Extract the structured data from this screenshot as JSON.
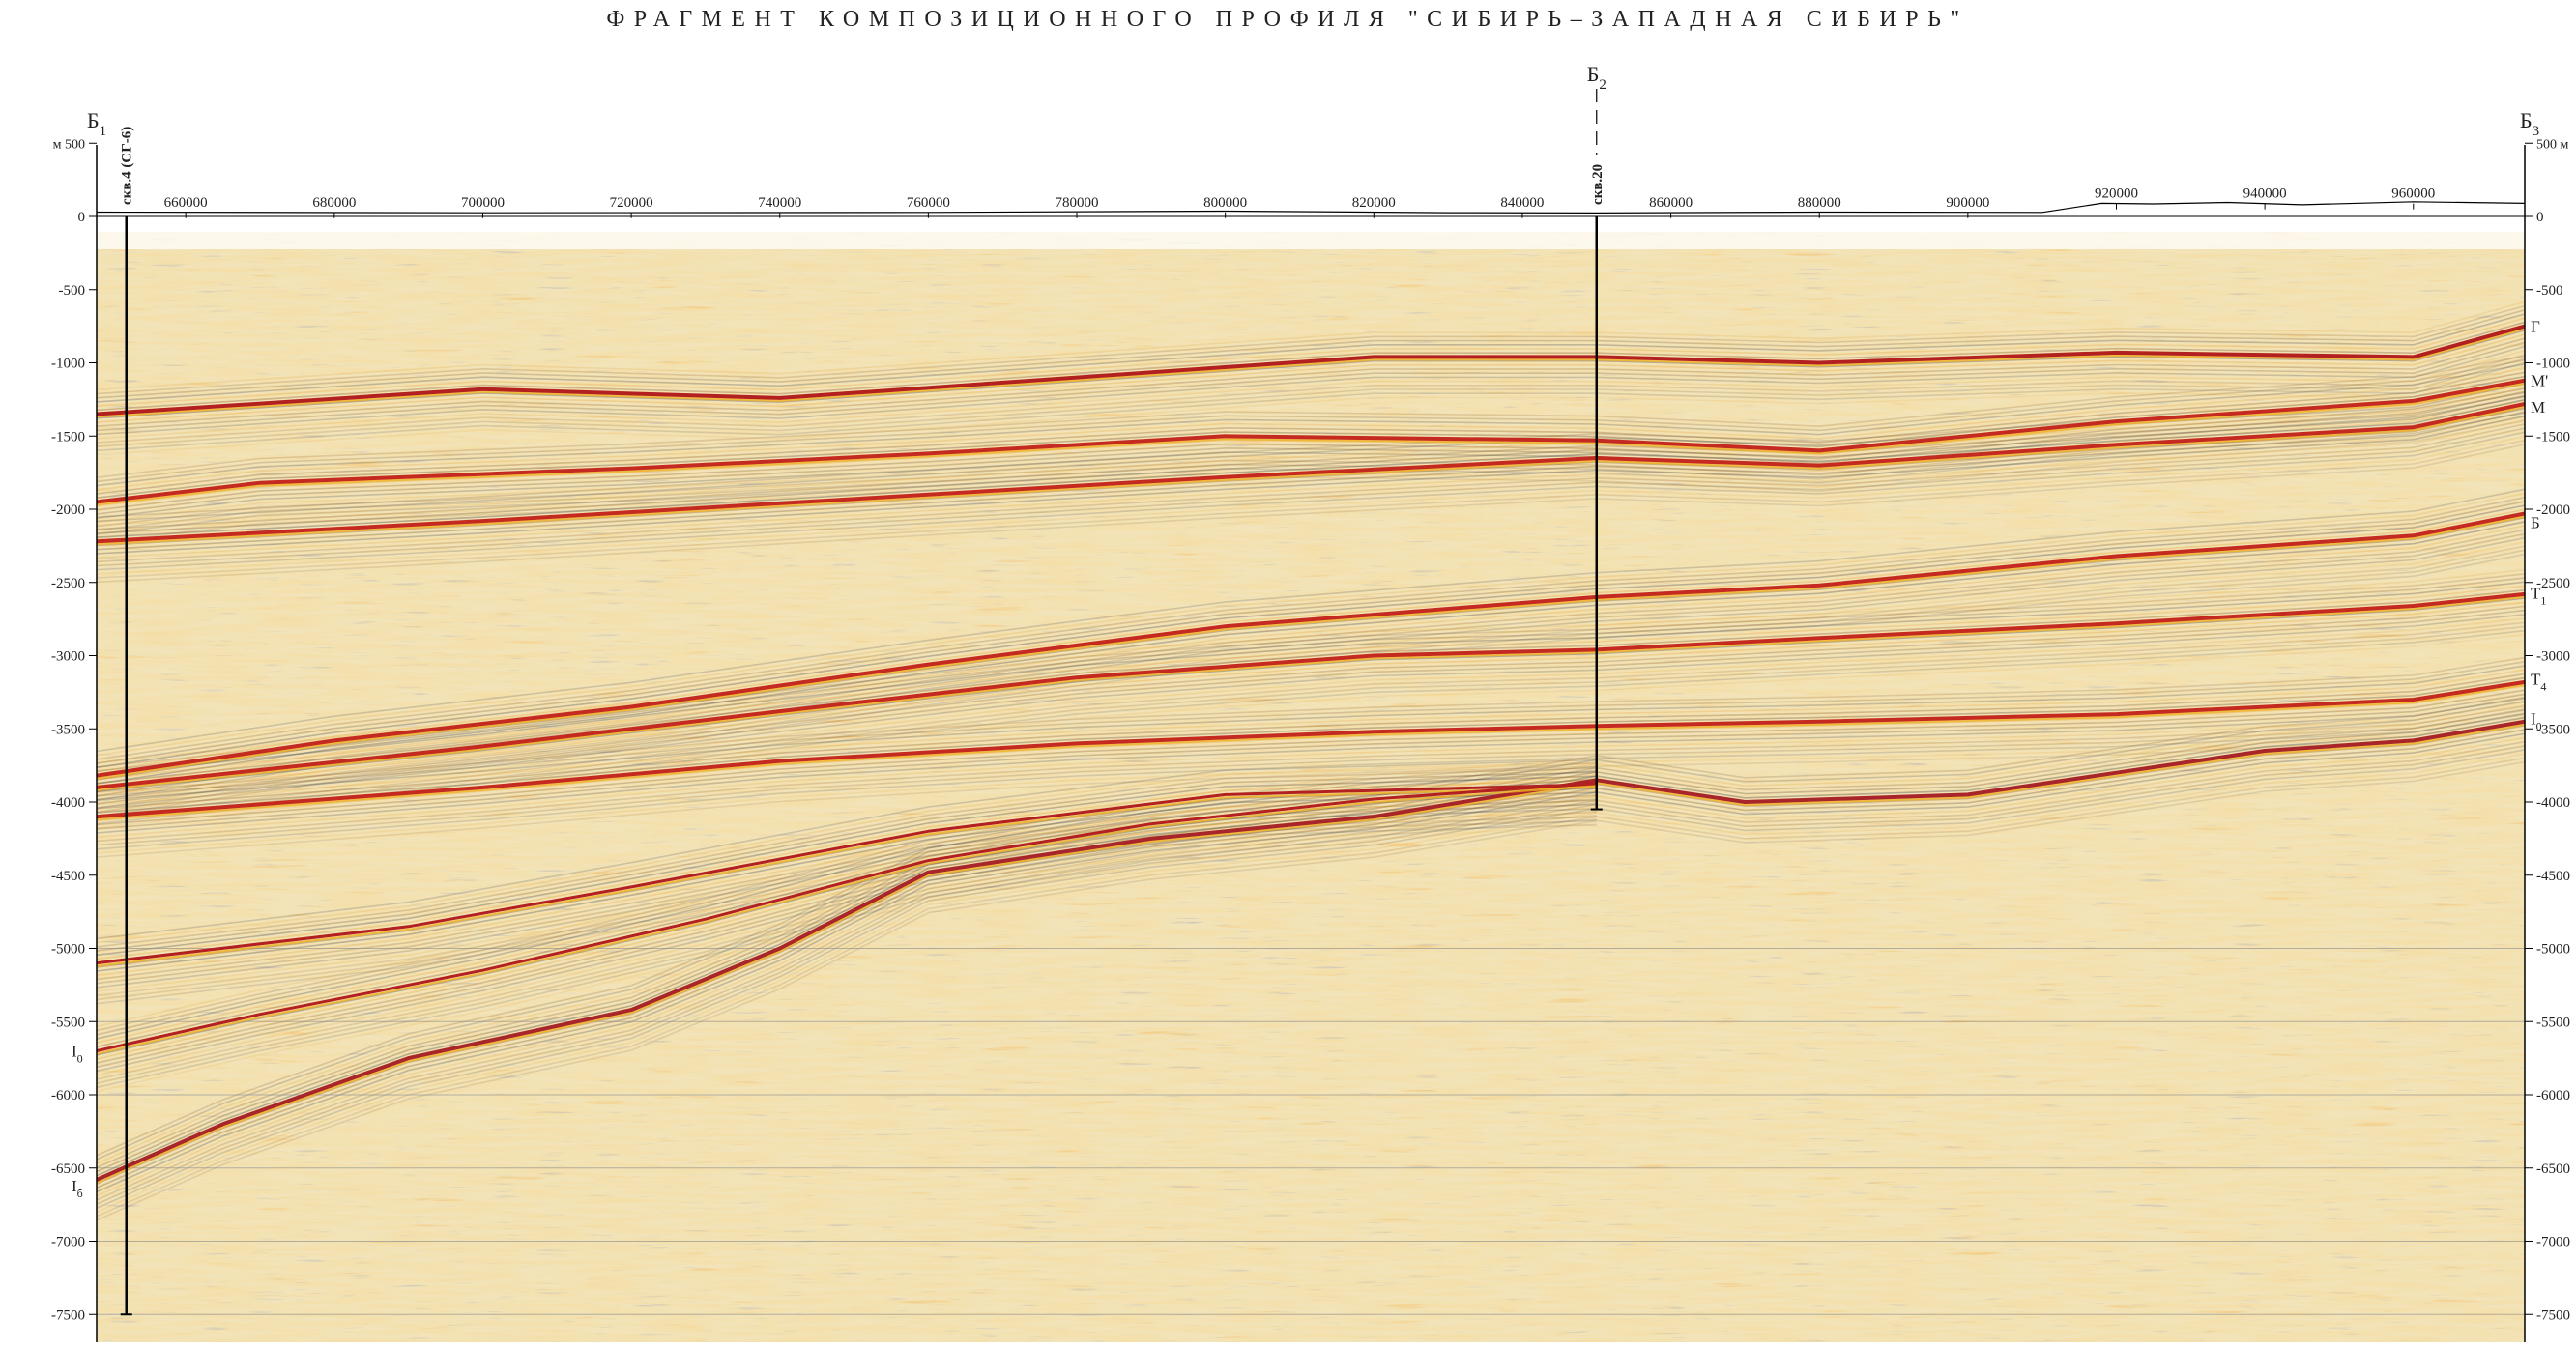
{
  "title": "ФРАГМЕНТ КОМПОЗИЦИОННОГО ПРОФИЛЯ \"СИБИРЬ–ЗАПАДНАЯ СИБИРЬ\"",
  "profile_points": {
    "left": {
      "letter": "Б",
      "index": "1"
    },
    "middle": {
      "letter": "Б",
      "index": "2"
    },
    "right": {
      "letter": "Б",
      "index": "3"
    }
  },
  "wells": [
    {
      "label": "скв.4 (СГ-6)",
      "x": 652000,
      "bottom_depth": -7500
    },
    {
      "label": "скв.20",
      "x": 850000,
      "bottom_depth": -4050
    }
  ],
  "elevation_label_left": "м 500",
  "elevation_label_right": "500 м",
  "zero_label": "0",
  "x_ticks": [
    660000,
    680000,
    700000,
    720000,
    740000,
    760000,
    780000,
    800000,
    820000,
    840000,
    860000,
    880000,
    900000,
    920000,
    940000,
    960000
  ],
  "x_tick_labels": [
    "660000",
    "680000",
    "700000",
    "720000",
    "740000",
    "760000",
    "780000",
    "800000",
    "820000",
    "840000",
    "860000",
    "880000",
    "900000",
    "920000",
    "940000",
    "960000"
  ],
  "depth_ticks": [
    -500,
    -1000,
    -1500,
    -2000,
    -2500,
    -3000,
    -3500,
    -4000,
    -4500,
    -5000,
    -5500,
    -6000,
    -6500,
    -7000,
    -7500
  ],
  "depth_tick_labels": [
    "-500",
    "-1000",
    "-1500",
    "-2000",
    "-2500",
    "-3000",
    "-3500",
    "-4000",
    "-4500",
    "-5000",
    "-5500",
    "-6000",
    "-6500",
    "-7000",
    "-7500"
  ],
  "right_depth_tick_labels": [
    "-500",
    "-1000",
    "-1500",
    "-2000",
    "-2500",
    "-3000",
    "-3500",
    "-4000",
    "-4500",
    "-5000",
    "-5500",
    "-6000",
    "-6500",
    "-7000",
    "-7500"
  ],
  "horizons": [
    {
      "id": "G",
      "label": "Г",
      "sub": "",
      "color": "#b32020",
      "width": 4,
      "points": [
        [
          648000,
          -1350
        ],
        [
          700000,
          -1180
        ],
        [
          740000,
          -1240
        ],
        [
          780000,
          -1100
        ],
        [
          820000,
          -960
        ],
        [
          850000,
          -960
        ],
        [
          880000,
          -1000
        ],
        [
          920000,
          -930
        ],
        [
          960000,
          -960
        ],
        [
          975000,
          -750
        ]
      ]
    },
    {
      "id": "Mp",
      "label": "М'",
      "sub": "",
      "color": "#c42a20",
      "width": 4,
      "points": [
        [
          648000,
          -1950
        ],
        [
          670000,
          -1820
        ],
        [
          720000,
          -1720
        ],
        [
          760000,
          -1620
        ],
        [
          800000,
          -1500
        ],
        [
          850000,
          -1530
        ],
        [
          880000,
          -1600
        ],
        [
          920000,
          -1400
        ],
        [
          960000,
          -1260
        ],
        [
          975000,
          -1120
        ]
      ]
    },
    {
      "id": "M",
      "label": "М",
      "sub": "",
      "color": "#c42a20",
      "width": 4,
      "points": [
        [
          648000,
          -2220
        ],
        [
          700000,
          -2080
        ],
        [
          760000,
          -1900
        ],
        [
          800000,
          -1780
        ],
        [
          850000,
          -1650
        ],
        [
          880000,
          -1700
        ],
        [
          920000,
          -1560
        ],
        [
          960000,
          -1440
        ],
        [
          975000,
          -1280
        ]
      ]
    },
    {
      "id": "B",
      "label": "Б",
      "sub": "",
      "color": "#c42a20",
      "width": 4,
      "points": [
        [
          648000,
          -3820
        ],
        [
          680000,
          -3580
        ],
        [
          720000,
          -3350
        ],
        [
          760000,
          -3060
        ],
        [
          800000,
          -2800
        ],
        [
          850000,
          -2600
        ],
        [
          880000,
          -2520
        ],
        [
          920000,
          -2320
        ],
        [
          960000,
          -2180
        ],
        [
          975000,
          -2030
        ]
      ]
    },
    {
      "id": "T1",
      "label": "T",
      "sub": "1",
      "color": "#c42a20",
      "width": 4,
      "points": [
        [
          648000,
          -3900
        ],
        [
          700000,
          -3620
        ],
        [
          740000,
          -3380
        ],
        [
          780000,
          -3150
        ],
        [
          820000,
          -3000
        ],
        [
          850000,
          -2960
        ],
        [
          880000,
          -2880
        ],
        [
          920000,
          -2780
        ],
        [
          960000,
          -2660
        ],
        [
          975000,
          -2580
        ]
      ]
    },
    {
      "id": "T4",
      "label": "T",
      "sub": "4",
      "color": "#c42a20",
      "width": 4,
      "points": [
        [
          648000,
          -4100
        ],
        [
          700000,
          -3900
        ],
        [
          740000,
          -3720
        ],
        [
          780000,
          -3600
        ],
        [
          820000,
          -3520
        ],
        [
          850000,
          -3480
        ],
        [
          880000,
          -3450
        ],
        [
          920000,
          -3400
        ],
        [
          960000,
          -3300
        ],
        [
          975000,
          -3180
        ]
      ]
    },
    {
      "id": "I0",
      "label": "I",
      "sub": "0",
      "color": "#a8252a",
      "width": 4,
      "points": [
        [
          648000,
          -6580
        ],
        [
          665000,
          -6200
        ],
        [
          690000,
          -5750
        ],
        [
          720000,
          -5420
        ],
        [
          740000,
          -5000
        ],
        [
          760000,
          -4480
        ],
        [
          790000,
          -4250
        ],
        [
          820000,
          -4100
        ],
        [
          850000,
          -3850
        ],
        [
          870000,
          -4000
        ],
        [
          900000,
          -3950
        ],
        [
          920000,
          -3800
        ],
        [
          940000,
          -3650
        ],
        [
          960000,
          -3580
        ],
        [
          975000,
          -3450
        ]
      ]
    },
    {
      "id": "Ib1",
      "label": "",
      "sub": "",
      "color": "#b32020",
      "width": 3,
      "points": [
        [
          648000,
          -5100
        ],
        [
          690000,
          -4850
        ],
        [
          720000,
          -4580
        ],
        [
          760000,
          -4200
        ],
        [
          800000,
          -3950
        ],
        [
          850000,
          -3880
        ]
      ]
    },
    {
      "id": "Ib2",
      "label": "",
      "sub": "",
      "color": "#b32020",
      "width": 3,
      "points": [
        [
          648000,
          -5700
        ],
        [
          670000,
          -5450
        ],
        [
          700000,
          -5150
        ],
        [
          730000,
          -4800
        ],
        [
          760000,
          -4400
        ],
        [
          790000,
          -4150
        ],
        [
          820000,
          -3980
        ],
        [
          850000,
          -3870
        ]
      ]
    }
  ],
  "left_horizon_labels": [
    {
      "label": "I",
      "sub": "0",
      "depth": -5700
    },
    {
      "label": "I",
      "sub": "б",
      "depth": -6620
    }
  ],
  "right_horizon_labels": [
    {
      "label": "Г",
      "sub": "",
      "depth": -750
    },
    {
      "label": "М'",
      "sub": "",
      "depth": -1120
    },
    {
      "label": "М",
      "sub": "",
      "depth": -1300
    },
    {
      "label": "Б",
      "sub": "",
      "depth": -2090
    },
    {
      "label": "T",
      "sub": "1",
      "depth": -2570
    },
    {
      "label": "T",
      "sub": "4",
      "depth": -3160
    },
    {
      "label": "I",
      "sub": "0",
      "depth": -3430
    }
  ],
  "relief": [
    [
      648000,
      30
    ],
    [
      700000,
      25
    ],
    [
      760000,
      28
    ],
    [
      800000,
      36
    ],
    [
      830000,
      26
    ],
    [
      850000,
      24
    ],
    [
      880000,
      30
    ],
    [
      910000,
      28
    ],
    [
      918000,
      90
    ],
    [
      925000,
      86
    ],
    [
      935000,
      96
    ],
    [
      945000,
      80
    ],
    [
      960000,
      100
    ],
    [
      975000,
      90
    ]
  ],
  "x_range": [
    648000,
    975000
  ],
  "depth_range": [
    -7720,
    500
  ],
  "colors": {
    "horizon": "#c42a20",
    "background": "#f2e3b8",
    "frame": "#000000"
  }
}
